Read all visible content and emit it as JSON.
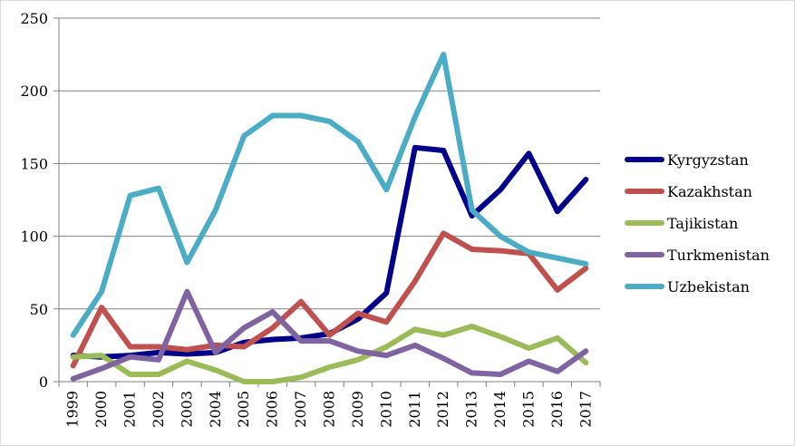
{
  "chart_data": {
    "type": "line",
    "title": "",
    "xlabel": "",
    "ylabel": "",
    "ylim": [
      0,
      250
    ],
    "yticks": [
      0,
      50,
      100,
      150,
      200,
      250
    ],
    "grid": true,
    "legend_position": "right",
    "categories": [
      "1999",
      "2000",
      "2001",
      "2002",
      "2003",
      "2004",
      "2005",
      "2006",
      "2007",
      "2008",
      "2009",
      "2010",
      "2011",
      "2012",
      "2013",
      "2014",
      "2015",
      "2016",
      "2017"
    ],
    "series": [
      {
        "name": "Kyrgyzstan",
        "color": "#00008b",
        "values": [
          18,
          17,
          18,
          20,
          19,
          20,
          27,
          29,
          30,
          33,
          43,
          61,
          161,
          159,
          114,
          132,
          157,
          117,
          139
        ]
      },
      {
        "name": "Kazakhstan",
        "color": "#c0504d",
        "values": [
          11,
          51,
          24,
          24,
          22,
          25,
          24,
          37,
          55,
          32,
          47,
          41,
          69,
          102,
          91,
          90,
          88,
          63,
          78
        ]
      },
      {
        "name": "Tajikistan",
        "color": "#9bbb59",
        "values": [
          17,
          18,
          5,
          5,
          14,
          8,
          0,
          0,
          3,
          10,
          15,
          24,
          36,
          32,
          38,
          31,
          23,
          30,
          13
        ]
      },
      {
        "name": "Turkmenistan",
        "color": "#8064a2",
        "values": [
          2,
          9,
          17,
          15,
          62,
          20,
          37,
          48,
          28,
          28,
          21,
          18,
          25,
          16,
          6,
          5,
          14,
          7,
          21
        ]
      },
      {
        "name": "Uzbekistan",
        "color": "#4bacc6",
        "values": [
          32,
          62,
          128,
          133,
          82,
          118,
          169,
          183,
          183,
          179,
          165,
          132,
          182,
          225,
          118,
          100,
          89,
          85,
          81
        ]
      }
    ]
  }
}
